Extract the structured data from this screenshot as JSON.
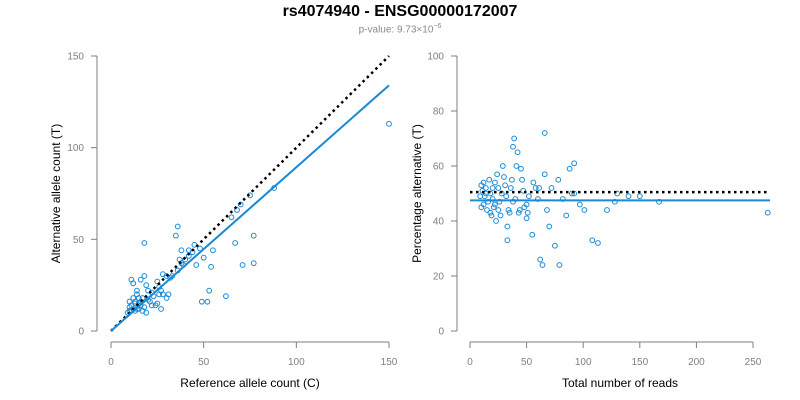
{
  "figure": {
    "title": "rs4074940 - ENSG00000172007",
    "pvalue_prefix": "p-value: 9.73×10",
    "pvalue_exp": "−6"
  },
  "colors": {
    "points": "#1a8ad6",
    "fit": "#1a8ad6",
    "reference": "#000000",
    "axis": "#7f7f7f",
    "tick_text": "#7f7f7f",
    "label_text": "#000000"
  },
  "chart_data": [
    {
      "type": "scatter",
      "xlabel": "Reference allele count (C)",
      "ylabel": "Alternative allele count (T)",
      "xlim": [
        0,
        150
      ],
      "ylim": [
        0,
        150
      ],
      "xticks": [
        0,
        50,
        100,
        150
      ],
      "yticks": [
        0,
        50,
        100,
        150
      ],
      "reference_line": {
        "style": "dotted",
        "x": [
          0,
          150
        ],
        "y": [
          0,
          150
        ]
      },
      "fit_line": {
        "x": [
          0,
          150
        ],
        "y": [
          0,
          134
        ]
      },
      "points": [
        [
          150,
          113
        ],
        [
          88,
          78
        ],
        [
          75,
          74
        ],
        [
          70,
          69
        ],
        [
          68,
          66
        ],
        [
          65,
          62
        ],
        [
          77,
          52
        ],
        [
          67,
          48
        ],
        [
          77,
          37
        ],
        [
          71,
          36
        ],
        [
          62,
          19
        ],
        [
          53,
          22
        ],
        [
          52,
          16
        ],
        [
          49,
          16
        ],
        [
          55,
          44
        ],
        [
          54,
          35
        ],
        [
          50,
          40
        ],
        [
          48,
          45
        ],
        [
          45,
          47
        ],
        [
          44,
          43
        ],
        [
          42,
          41
        ],
        [
          40,
          39
        ],
        [
          38,
          37
        ],
        [
          36,
          33
        ],
        [
          37,
          39
        ],
        [
          33,
          30
        ],
        [
          35,
          52
        ],
        [
          36,
          57
        ],
        [
          38,
          44
        ],
        [
          39,
          36
        ],
        [
          32,
          29
        ],
        [
          30,
          30
        ],
        [
          28,
          31
        ],
        [
          31,
          20
        ],
        [
          27,
          22
        ],
        [
          26,
          24
        ],
        [
          25,
          27
        ],
        [
          28,
          20
        ],
        [
          24,
          14
        ],
        [
          23,
          19
        ],
        [
          22,
          21
        ],
        [
          20,
          17
        ],
        [
          19,
          25
        ],
        [
          18,
          48
        ],
        [
          18,
          30
        ],
        [
          20,
          22
        ],
        [
          19,
          10
        ],
        [
          17,
          18
        ],
        [
          16,
          28
        ],
        [
          15,
          15
        ],
        [
          14,
          12
        ],
        [
          13,
          15
        ],
        [
          12,
          12
        ],
        [
          11,
          11
        ],
        [
          10,
          11
        ],
        [
          9,
          10
        ],
        [
          10,
          13
        ],
        [
          11,
          14
        ],
        [
          12,
          18
        ],
        [
          13,
          16
        ],
        [
          14,
          20
        ],
        [
          15,
          18
        ],
        [
          16,
          14
        ],
        [
          17,
          11
        ],
        [
          18,
          13
        ],
        [
          12,
          26
        ],
        [
          11,
          28
        ],
        [
          14,
          22
        ],
        [
          15,
          12
        ],
        [
          16,
          16
        ],
        [
          13,
          11
        ],
        [
          10,
          16
        ],
        [
          22,
          14
        ],
        [
          25,
          15
        ],
        [
          27,
          12
        ],
        [
          21,
          16
        ],
        [
          30,
          18
        ],
        [
          26,
          20
        ],
        [
          46,
          36
        ],
        [
          42,
          44
        ]
      ]
    },
    {
      "type": "scatter",
      "xlabel": "Total number of reads",
      "ylabel": "Percentage alternative (T)",
      "xlim": [
        0,
        265
      ],
      "ylim": [
        0,
        100
      ],
      "xticks": [
        0,
        50,
        100,
        150,
        200,
        250
      ],
      "yticks": [
        0,
        20,
        40,
        60,
        80,
        100
      ],
      "reference_line": {
        "style": "dotted",
        "x": [
          0,
          265
        ],
        "y": [
          50.5,
          50.5
        ]
      },
      "fit_line": {
        "x": [
          0,
          265
        ],
        "y": [
          47.5,
          47.5
        ]
      },
      "points": [
        [
          263,
          43
        ],
        [
          167,
          47
        ],
        [
          150,
          49
        ],
        [
          140,
          49
        ],
        [
          130,
          50
        ],
        [
          128,
          47
        ],
        [
          121,
          44
        ],
        [
          113,
          32
        ],
        [
          108,
          33
        ],
        [
          101,
          44
        ],
        [
          97,
          46
        ],
        [
          92,
          50
        ],
        [
          92,
          61
        ],
        [
          90,
          50
        ],
        [
          88,
          59
        ],
        [
          85,
          42
        ],
        [
          82,
          48
        ],
        [
          79,
          24
        ],
        [
          78,
          55
        ],
        [
          75,
          31
        ],
        [
          72,
          52
        ],
        [
          70,
          38
        ],
        [
          68,
          44
        ],
        [
          66,
          72
        ],
        [
          66,
          57
        ],
        [
          64,
          24
        ],
        [
          62,
          26
        ],
        [
          61,
          52
        ],
        [
          60,
          48
        ],
        [
          58,
          52
        ],
        [
          56,
          54
        ],
        [
          55,
          35
        ],
        [
          52,
          49
        ],
        [
          51,
          43
        ],
        [
          50,
          41
        ],
        [
          50,
          46
        ],
        [
          48,
          45
        ],
        [
          47,
          51
        ],
        [
          46,
          55
        ],
        [
          45,
          59
        ],
        [
          44,
          44
        ],
        [
          43,
          43
        ],
        [
          42,
          65
        ],
        [
          41,
          60
        ],
        [
          40,
          48
        ],
        [
          39,
          70
        ],
        [
          38,
          67
        ],
        [
          37,
          55
        ],
        [
          36,
          52
        ],
        [
          35,
          43
        ],
        [
          34,
          44
        ],
        [
          33,
          38
        ],
        [
          33,
          33
        ],
        [
          32,
          49
        ],
        [
          31,
          53
        ],
        [
          30,
          56
        ],
        [
          29,
          60
        ],
        [
          28,
          50
        ],
        [
          27,
          42
        ],
        [
          26,
          47
        ],
        [
          25,
          44
        ],
        [
          25,
          52
        ],
        [
          24,
          57
        ],
        [
          23,
          40
        ],
        [
          22,
          54
        ],
        [
          22,
          46
        ],
        [
          21,
          45
        ],
        [
          20,
          48
        ],
        [
          20,
          52
        ],
        [
          19,
          42
        ],
        [
          18,
          43
        ],
        [
          18,
          50
        ],
        [
          17,
          55
        ],
        [
          16,
          47
        ],
        [
          15,
          44
        ],
        [
          14,
          50
        ],
        [
          14,
          52
        ],
        [
          13,
          49
        ],
        [
          12,
          46
        ],
        [
          12,
          54
        ],
        [
          11,
          51
        ],
        [
          10,
          45
        ],
        [
          10,
          53
        ],
        [
          9,
          49
        ],
        [
          38,
          47
        ]
      ]
    }
  ]
}
